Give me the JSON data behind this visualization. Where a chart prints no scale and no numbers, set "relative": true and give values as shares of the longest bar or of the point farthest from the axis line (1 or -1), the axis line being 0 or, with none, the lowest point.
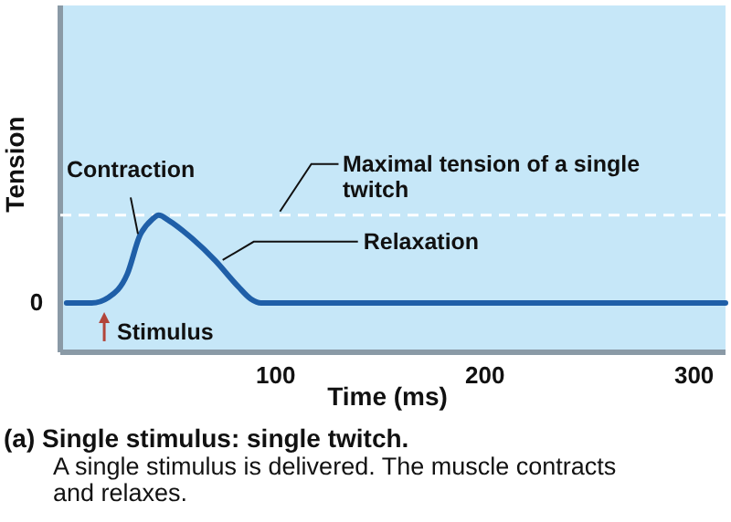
{
  "chart_data": {
    "type": "line",
    "relative": true,
    "xlabel": "Time (ms)",
    "ylabel": "Tension",
    "title": "(a) Single stimulus: single twitch.",
    "subtitle": "A single stimulus is delivered. The muscle contracts and relaxes.",
    "x": [
      0,
      12,
      20,
      29,
      35,
      41,
      44,
      49,
      60,
      71,
      82,
      88,
      93,
      315
    ],
    "series": [
      {
        "color": "#1f5fa8",
        "values": [
          0.36,
          0.36,
          0.4,
          0.57,
          0.85,
          0.97,
          1,
          0.96,
          0.83,
          0.67,
          0.48,
          0.39,
          0.36,
          0.36
        ]
      }
    ],
    "xlim": [
      -3,
      315
    ],
    "xticks": [
      100,
      200,
      300
    ],
    "ref_lines": [
      {
        "axis": "y",
        "value": 1,
        "label": "Maximal tension of a single twitch",
        "color": "#ffffff",
        "line_style": "dashed"
      }
    ],
    "annotations": [
      {
        "text": "Contraction",
        "x": 35,
        "y": 0.85
      },
      {
        "text": "Relaxation",
        "x": 72,
        "y": 0.66
      },
      {
        "text": "Stimulus",
        "x": 18,
        "y": 0.36
      },
      "0"
    ]
  }
}
